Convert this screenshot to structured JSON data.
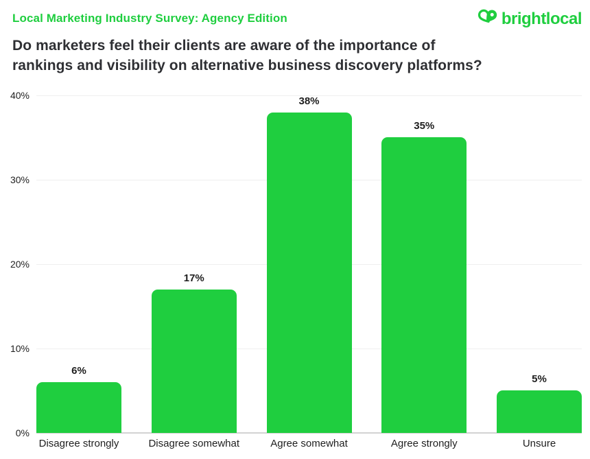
{
  "header": {
    "eyebrow": "Local Marketing Industry Survey: Agency Edition",
    "title_lines": [
      "Do marketers feel their clients are aware of the importance of",
      "rankings and visibility on alternative business discovery platforms?"
    ]
  },
  "logo": {
    "wordmark": "brightlocal",
    "icon": "map-pin-heart-icon"
  },
  "colors": {
    "brand_green": "#1FCE3F",
    "title_dark": "#2E2F33",
    "label_dark": "#1E1E1E",
    "gridline": "#EFEFEF",
    "baseline": "#D2D2D2"
  },
  "chart_data": {
    "type": "bar",
    "title": "Do marketers feel their clients are aware of the importance of rankings and visibility on alternative business discovery platforms?",
    "categories": [
      "Disagree strongly",
      "Disagree somewhat",
      "Agree somewhat",
      "Agree strongly",
      "Unsure"
    ],
    "values": [
      6,
      17,
      38,
      35,
      5
    ],
    "value_labels": [
      "6%",
      "17%",
      "38%",
      "35%",
      "5%"
    ],
    "y_ticks": [
      "40%",
      "30%",
      "20%",
      "10%",
      "0%"
    ],
    "ylim": [
      0,
      40
    ],
    "xlabel": "",
    "ylabel": "",
    "grid": "horizontal",
    "legend": "none",
    "bar_color": "#1FCE3F"
  }
}
